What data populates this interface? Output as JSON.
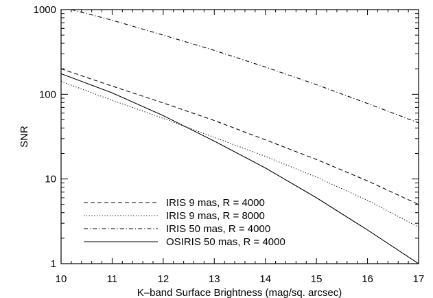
{
  "chart_data": {
    "type": "line",
    "xlabel": "K–band Surface Brightness (mag/sq. arcsec)",
    "ylabel": "SNR",
    "xlim": [
      10,
      17
    ],
    "ylim": [
      1,
      1000
    ],
    "yscale": "log",
    "x_ticks": [
      10,
      11,
      12,
      13,
      14,
      15,
      16,
      17
    ],
    "x_tick_labels": [
      "10",
      "11",
      "12",
      "13",
      "14",
      "15",
      "16",
      "17"
    ],
    "y_ticks": [
      1,
      10,
      100,
      1000
    ],
    "y_tick_labels": [
      "1",
      "10",
      "100",
      "1000"
    ],
    "grid": false,
    "legend_position": "bottom-left",
    "series": [
      {
        "name": "IRIS 9 mas, R = 4000",
        "dash": "dashed",
        "x": [
          10,
          11,
          12,
          13,
          14,
          15,
          16,
          17
        ],
        "y": [
          200,
          125,
          79,
          49,
          29,
          17,
          9.5,
          5
        ]
      },
      {
        "name": "IRIS 9 mas, R = 8000",
        "dash": "dotted",
        "x": [
          10,
          11,
          12,
          13,
          14,
          15,
          16,
          17
        ],
        "y": [
          142,
          85,
          52,
          31,
          18.5,
          10.5,
          5.6,
          2.7
        ]
      },
      {
        "name": "IRIS 50 mas, R = 4000",
        "dash": "dashdot",
        "x": [
          10.2,
          11,
          12,
          13,
          14,
          15,
          16,
          17
        ],
        "y": [
          1000,
          750,
          500,
          330,
          210,
          130,
          78,
          46
        ]
      },
      {
        "name": "OSIRIS 50 mas, R = 4000",
        "dash": "solid",
        "x": [
          10,
          11,
          12,
          13,
          14,
          15,
          16,
          17
        ],
        "y": [
          175,
          104,
          56,
          28,
          13.5,
          6,
          2.5,
          1
        ]
      }
    ]
  }
}
